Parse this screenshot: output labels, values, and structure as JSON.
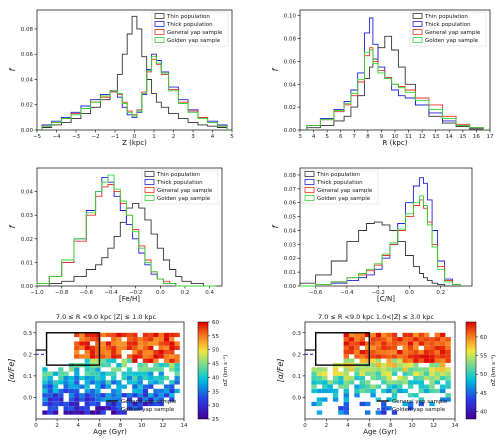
{
  "figure": {
    "legend_labels": [
      "Thin population",
      "Thick population",
      "General yap sample",
      "Golden yap sample"
    ],
    "colors": {
      "thin": "#333333",
      "thick": "#1f1fdd",
      "general": "#e8322a",
      "golden": "#33d633"
    }
  },
  "chart_data": [
    {
      "type": "line",
      "id": "z-distribution",
      "xlabel": "Z (kpc)",
      "ylabel": "f",
      "xlim": [
        -5,
        5
      ],
      "ylim": [
        0,
        0.095
      ],
      "xticks": [
        "−5",
        "−4",
        "−3",
        "−2",
        "−1",
        "0",
        "1",
        "2",
        "3",
        "4",
        "5"
      ],
      "xtick_values": [
        -5,
        -4,
        -3,
        -2,
        -1,
        0,
        1,
        2,
        3,
        4,
        5
      ],
      "yticks": [
        "0.00",
        "0.02",
        "0.04",
        "0.06",
        "0.08"
      ],
      "ytick_values": [
        0,
        0.02,
        0.04,
        0.06,
        0.08
      ],
      "legend_position": "top-right",
      "x": [
        -4.5,
        -4,
        -3.5,
        -3,
        -2.5,
        -2,
        -1.5,
        -1,
        -0.75,
        -0.5,
        -0.25,
        0,
        0.25,
        0.5,
        0.75,
        1,
        1.25,
        1.5,
        2,
        2.5,
        3,
        3.5,
        4,
        4.5
      ],
      "series": [
        {
          "name": "Thin population",
          "color_key": "thin",
          "values": [
            0.002,
            0.004,
            0.006,
            0.009,
            0.013,
            0.018,
            0.024,
            0.031,
            0.044,
            0.06,
            0.076,
            0.09,
            0.08,
            0.058,
            0.04,
            0.029,
            0.022,
            0.018,
            0.013,
            0.009,
            0.006,
            0.004,
            0.003,
            0.002
          ]
        },
        {
          "name": "Thick population",
          "color_key": "thick",
          "values": [
            0.004,
            0.007,
            0.01,
            0.014,
            0.019,
            0.024,
            0.028,
            0.031,
            0.026,
            0.018,
            0.012,
            0.01,
            0.014,
            0.028,
            0.048,
            0.06,
            0.055,
            0.046,
            0.034,
            0.024,
            0.016,
            0.01,
            0.007,
            0.004
          ]
        },
        {
          "name": "General yap sample",
          "color_key": "general",
          "values": [
            0.003,
            0.006,
            0.009,
            0.013,
            0.017,
            0.022,
            0.026,
            0.03,
            0.028,
            0.022,
            0.015,
            0.012,
            0.016,
            0.03,
            0.046,
            0.056,
            0.052,
            0.044,
            0.032,
            0.022,
            0.015,
            0.01,
            0.006,
            0.003
          ]
        },
        {
          "name": "Golden yap sample",
          "color_key": "golden",
          "values": [
            0.003,
            0.006,
            0.009,
            0.012,
            0.017,
            0.022,
            0.027,
            0.031,
            0.029,
            0.021,
            0.014,
            0.011,
            0.015,
            0.029,
            0.047,
            0.058,
            0.053,
            0.045,
            0.031,
            0.021,
            0.014,
            0.009,
            0.006,
            0.003
          ]
        }
      ]
    },
    {
      "type": "line",
      "id": "r-distribution",
      "xlabel": "R (kpc)",
      "ylabel": "f",
      "xlim": [
        3,
        17
      ],
      "ylim": [
        0,
        0.105
      ],
      "xticks": [
        "3",
        "4",
        "5",
        "6",
        "7",
        "8",
        "9",
        "10",
        "11",
        "12",
        "13",
        "14",
        "15",
        "16",
        "17"
      ],
      "xtick_values": [
        3,
        4,
        5,
        6,
        7,
        8,
        9,
        10,
        11,
        12,
        13,
        14,
        15,
        16,
        17
      ],
      "yticks": [
        "0.00",
        "0.02",
        "0.04",
        "0.06",
        "0.08",
        "0.10"
      ],
      "ytick_values": [
        0,
        0.02,
        0.04,
        0.06,
        0.08,
        0.1
      ],
      "legend_position": "top-right",
      "x": [
        4,
        5,
        6,
        6.5,
        7,
        7.5,
        8,
        8.25,
        8.5,
        9,
        9.5,
        10,
        10.5,
        11,
        12,
        13,
        14,
        15,
        16
      ],
      "series": [
        {
          "name": "Thin population",
          "color_key": "thin",
          "values": [
            0.002,
            0.004,
            0.008,
            0.012,
            0.02,
            0.03,
            0.045,
            0.055,
            0.062,
            0.072,
            0.082,
            0.07,
            0.055,
            0.04,
            0.022,
            0.012,
            0.006,
            0.003,
            0.001
          ]
        },
        {
          "name": "Thick population",
          "color_key": "thick",
          "values": [
            0.004,
            0.01,
            0.018,
            0.025,
            0.035,
            0.05,
            0.085,
            0.098,
            0.075,
            0.055,
            0.045,
            0.035,
            0.03,
            0.028,
            0.022,
            0.015,
            0.008,
            0.004,
            0.002
          ]
        },
        {
          "name": "General yap sample",
          "color_key": "general",
          "values": [
            0.004,
            0.009,
            0.016,
            0.022,
            0.03,
            0.042,
            0.065,
            0.072,
            0.06,
            0.052,
            0.046,
            0.04,
            0.038,
            0.035,
            0.028,
            0.022,
            0.012,
            0.005,
            0.002
          ]
        },
        {
          "name": "Golden yap sample",
          "color_key": "golden",
          "values": [
            0.004,
            0.009,
            0.017,
            0.023,
            0.032,
            0.044,
            0.068,
            0.07,
            0.058,
            0.05,
            0.045,
            0.04,
            0.037,
            0.033,
            0.026,
            0.018,
            0.01,
            0.004,
            0.002
          ]
        }
      ]
    },
    {
      "type": "line",
      "id": "feh-distribution",
      "xlabel": "[Fe/H]",
      "ylabel": "f",
      "xlim": [
        -1.0,
        0.5
      ],
      "ylim": [
        0,
        0.05
      ],
      "xticks": [
        "−1.0",
        "−0.8",
        "−0.6",
        "−0.4",
        "−0.2",
        "0.0",
        "0.2",
        "0.4"
      ],
      "xtick_values": [
        -1.0,
        -0.8,
        -0.6,
        -0.4,
        -0.2,
        0.0,
        0.2,
        0.4
      ],
      "yticks": [
        "0.00",
        "0.01",
        "0.02",
        "0.03",
        "0.04"
      ],
      "ytick_values": [
        0,
        0.01,
        0.02,
        0.03,
        0.04
      ],
      "legend_position": "top-right",
      "x": [
        -0.95,
        -0.85,
        -0.75,
        -0.65,
        -0.55,
        -0.5,
        -0.45,
        -0.4,
        -0.35,
        -0.3,
        -0.25,
        -0.2,
        -0.15,
        -0.1,
        -0.05,
        0.0,
        0.05,
        0.1,
        0.15,
        0.2,
        0.3,
        0.4
      ],
      "series": [
        {
          "name": "Thin population",
          "color_key": "thin",
          "values": [
            0.0,
            0.001,
            0.002,
            0.004,
            0.007,
            0.009,
            0.012,
            0.016,
            0.021,
            0.027,
            0.033,
            0.035,
            0.033,
            0.028,
            0.022,
            0.016,
            0.011,
            0.007,
            0.004,
            0.002,
            0.001,
            0.0
          ]
        },
        {
          "name": "Thick population",
          "color_key": "thick",
          "values": [
            0.001,
            0.004,
            0.01,
            0.02,
            0.032,
            0.04,
            0.046,
            0.044,
            0.038,
            0.032,
            0.026,
            0.02,
            0.014,
            0.009,
            0.005,
            0.003,
            0.001,
            0.001,
            0.0,
            0.0,
            0.0,
            0.0
          ]
        },
        {
          "name": "General yap sample",
          "color_key": "general",
          "values": [
            0.001,
            0.004,
            0.01,
            0.019,
            0.03,
            0.038,
            0.042,
            0.043,
            0.04,
            0.035,
            0.03,
            0.024,
            0.017,
            0.011,
            0.006,
            0.003,
            0.002,
            0.001,
            0.0,
            0.0,
            0.0,
            0.0
          ]
        },
        {
          "name": "Golden yap sample",
          "color_key": "golden",
          "values": [
            0.001,
            0.004,
            0.011,
            0.02,
            0.031,
            0.04,
            0.044,
            0.047,
            0.041,
            0.036,
            0.03,
            0.023,
            0.016,
            0.01,
            0.006,
            0.003,
            0.001,
            0.001,
            0.0,
            0.0,
            0.0,
            0.0
          ]
        }
      ]
    },
    {
      "type": "line",
      "id": "ch-distribution",
      "xlabel": "[C/N]",
      "ylabel": "f",
      "xlim": [
        -0.7,
        0.4
      ],
      "ylim": [
        0,
        0.085
      ],
      "xticks": [
        "−0.6",
        "−0.4",
        "−0.2",
        "0.0",
        "0.2"
      ],
      "xtick_values": [
        -0.6,
        -0.4,
        -0.2,
        0.0,
        0.2
      ],
      "yticks": [
        "0.00",
        "0.01",
        "0.02",
        "0.03",
        "0.04",
        "0.05",
        "0.06",
        "0.07",
        "0.08"
      ],
      "ytick_values": [
        0,
        0.01,
        0.02,
        0.03,
        0.04,
        0.05,
        0.06,
        0.07,
        0.08
      ],
      "legend_position": "top-left",
      "x": [
        -0.65,
        -0.55,
        -0.45,
        -0.35,
        -0.3,
        -0.25,
        -0.2,
        -0.15,
        -0.1,
        -0.05,
        0.0,
        0.05,
        0.08,
        0.1,
        0.13,
        0.16,
        0.2,
        0.25,
        0.3
      ],
      "series": [
        {
          "name": "Thin population",
          "color_key": "thin",
          "values": [
            0.002,
            0.008,
            0.018,
            0.032,
            0.04,
            0.045,
            0.046,
            0.044,
            0.04,
            0.032,
            0.022,
            0.014,
            0.009,
            0.006,
            0.004,
            0.002,
            0.001,
            0.0,
            0.0
          ]
        },
        {
          "name": "Thick population",
          "color_key": "thick",
          "values": [
            0.0,
            0.001,
            0.002,
            0.004,
            0.006,
            0.008,
            0.012,
            0.02,
            0.03,
            0.045,
            0.06,
            0.072,
            0.078,
            0.074,
            0.062,
            0.04,
            0.018,
            0.005,
            0.001
          ]
        },
        {
          "name": "General yap sample",
          "color_key": "general",
          "values": [
            0.0,
            0.001,
            0.003,
            0.006,
            0.008,
            0.011,
            0.015,
            0.022,
            0.03,
            0.04,
            0.05,
            0.058,
            0.062,
            0.056,
            0.046,
            0.03,
            0.014,
            0.004,
            0.001
          ]
        },
        {
          "name": "Golden yap sample",
          "color_key": "golden",
          "values": [
            0.0,
            0.001,
            0.003,
            0.006,
            0.009,
            0.012,
            0.016,
            0.023,
            0.031,
            0.041,
            0.052,
            0.06,
            0.065,
            0.058,
            0.044,
            0.028,
            0.012,
            0.003,
            0.001
          ]
        }
      ]
    },
    {
      "type": "heatmap",
      "id": "alpha-age-inner",
      "annotation": "7.0 ≤ R <9.0 kpc    |Z| ≤ 1.0 kpc",
      "xlabel": "Age (Gyr)",
      "ylabel": "[α/Fe]",
      "colorbar_label": "σZ (km s⁻¹)",
      "xlim": [
        0,
        14
      ],
      "ylim": [
        -0.1,
        0.35
      ],
      "xticks": [
        "0",
        "2",
        "4",
        "6",
        "8",
        "10",
        "12",
        "14"
      ],
      "xtick_values": [
        0,
        2,
        4,
        6,
        8,
        10,
        12,
        14
      ],
      "yticks": [
        "0.0",
        "0.1",
        "0.2",
        "0.3"
      ],
      "ytick_values": [
        0.0,
        0.1,
        0.2,
        0.3
      ],
      "colorbar_range": [
        25,
        60
      ],
      "colorbar_ticks": [
        "25",
        "30",
        "35",
        "40",
        "45",
        "50",
        "55",
        "60"
      ],
      "colorbar_tick_values": [
        25,
        30,
        35,
        40,
        45,
        50,
        55,
        60
      ],
      "box": {
        "age_range": [
          1.0,
          6.0
        ],
        "alpha_range": [
          0.15,
          0.3
        ]
      },
      "legend_position": "lower-right",
      "legend": [
        "General yap sample",
        "Golden yap sample"
      ],
      "line_levels": {
        "General yap sample": 0.22,
        "Golden yap sample": 0.2
      }
    },
    {
      "type": "heatmap",
      "id": "alpha-age-outer",
      "annotation": "7.0 ≤ R <9.0 kpc    1.0<|Z| ≤ 3.0 kpc",
      "xlabel": "Age (Gyr)",
      "ylabel": "[α/Fe]",
      "colorbar_label": "σZ (km s⁻¹)",
      "xlim": [
        0,
        14
      ],
      "ylim": [
        -0.1,
        0.35
      ],
      "xticks": [
        "0",
        "2",
        "4",
        "6",
        "8",
        "10",
        "12",
        "14"
      ],
      "xtick_values": [
        0,
        2,
        4,
        6,
        8,
        10,
        12,
        14
      ],
      "yticks": [
        "0.0",
        "0.1",
        "0.2",
        "0.3"
      ],
      "ytick_values": [
        0.0,
        0.1,
        0.2,
        0.3
      ],
      "colorbar_range": [
        38,
        64
      ],
      "colorbar_ticks": [
        "40",
        "45",
        "50",
        "55",
        "60"
      ],
      "colorbar_tick_values": [
        40,
        45,
        50,
        55,
        60
      ],
      "box": {
        "age_range": [
          1.0,
          6.0
        ],
        "alpha_range": [
          0.15,
          0.3
        ]
      },
      "legend_position": "lower-right",
      "legend": [
        "General yap sample",
        "Golden yap sample"
      ],
      "line_levels": {
        "General yap sample": 0.22,
        "Golden yap sample": 0.2
      }
    }
  ]
}
